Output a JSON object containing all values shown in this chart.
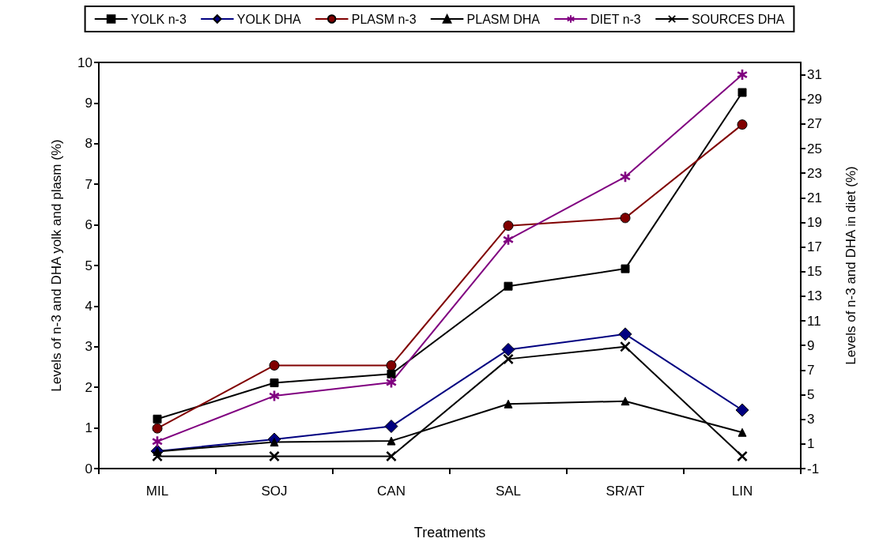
{
  "chart_data": {
    "type": "line",
    "xlabel": "Treatments",
    "ylabel": "Levels of n-3 and DHA yolk and plasm (%)",
    "y2label": "Levels of n-3 and DHA in diet (%)",
    "categories": [
      "MIL",
      "SOJ",
      "CAN",
      "SAL",
      "SR/AT",
      "LIN"
    ],
    "series": [
      {
        "name": "YOLK n-3",
        "color": "#000000",
        "marker": "square",
        "values": [
          1.22,
          2.11,
          2.33,
          4.49,
          4.92,
          9.26
        ]
      },
      {
        "name": "YOLK DHA",
        "color": "#000080",
        "marker": "diamond",
        "values": [
          0.43,
          0.72,
          1.04,
          2.93,
          3.31,
          1.44
        ]
      },
      {
        "name": "PLASM n-3",
        "color": "#800000",
        "marker": "circle",
        "values": [
          0.99,
          2.54,
          2.54,
          5.98,
          6.17,
          8.47
        ]
      },
      {
        "name": "PLASM DHA",
        "color": "#000000",
        "marker": "triangle",
        "values": [
          0.42,
          0.65,
          0.68,
          1.59,
          1.66,
          0.89
        ]
      },
      {
        "name": "DIET n-3",
        "color": "#800080",
        "marker": "star",
        "axis": "y2",
        "values": [
          1.2,
          4.9,
          6.0,
          17.6,
          22.7,
          31.0
        ]
      },
      {
        "name": "SOURCES DHA",
        "color": "#000000",
        "marker": "cross",
        "axis": "y2",
        "values": [
          0,
          0,
          0,
          7.9,
          8.9,
          0
        ]
      }
    ],
    "ylim": [
      0,
      10
    ],
    "yticks": [
      0,
      1,
      2,
      3,
      4,
      5,
      6,
      7,
      8,
      9,
      10
    ],
    "y2lim": [
      -1,
      32
    ],
    "y2ticks": [
      -1,
      1,
      3,
      5,
      7,
      9,
      11,
      13,
      15,
      17,
      19,
      21,
      23,
      25,
      27,
      29,
      31
    ],
    "grid": false,
    "legend": "top",
    "line_style": "solid"
  }
}
